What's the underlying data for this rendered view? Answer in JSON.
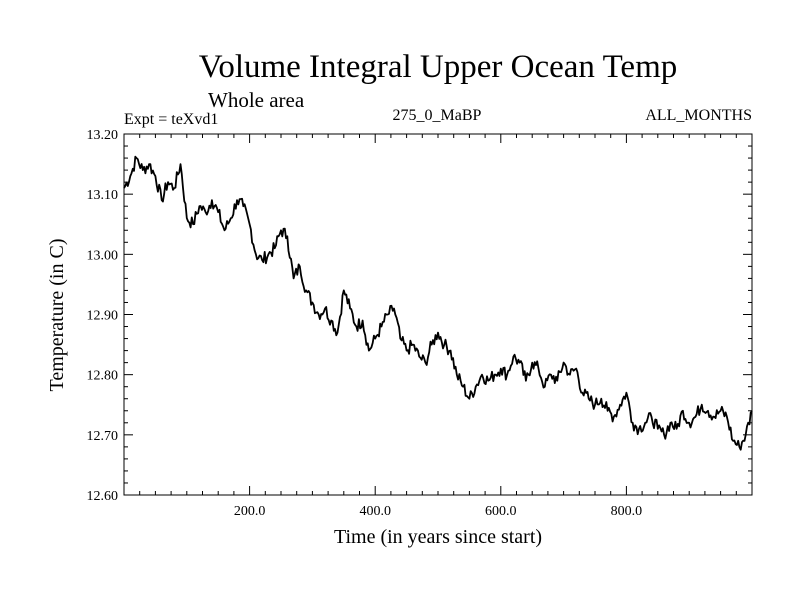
{
  "chart_data": {
    "type": "line",
    "title": "Volume Integral Upper Ocean Temp",
    "subtitle": "Whole area",
    "expt_label": "Expt = teXvd1",
    "run_label": "275_0_MaBP",
    "months_label": "ALL_MONTHS",
    "xlabel": "Time (in years since start)",
    "ylabel": "Temperature (in C)",
    "xlim": [
      0,
      1000
    ],
    "ylim": [
      12.6,
      13.2
    ],
    "x_ticks": [
      200,
      400,
      600,
      800
    ],
    "x_tick_labels": [
      "200.0",
      "400.0",
      "600.0",
      "800.0"
    ],
    "y_ticks": [
      12.6,
      12.7,
      12.8,
      12.9,
      13.0,
      13.1,
      13.2
    ],
    "y_tick_labels": [
      "12.60",
      "12.70",
      "12.80",
      "12.90",
      "13.00",
      "13.10",
      "13.20"
    ],
    "grid": false,
    "series": [
      {
        "name": "teXvd1",
        "color": "#000000",
        "x": [
          0,
          10,
          20,
          30,
          40,
          50,
          60,
          70,
          80,
          90,
          100,
          110,
          120,
          130,
          140,
          150,
          160,
          170,
          180,
          190,
          200,
          210,
          220,
          230,
          240,
          250,
          260,
          270,
          280,
          290,
          300,
          310,
          320,
          330,
          340,
          350,
          360,
          370,
          380,
          390,
          400,
          410,
          420,
          430,
          440,
          450,
          460,
          470,
          480,
          490,
          500,
          510,
          520,
          530,
          540,
          550,
          560,
          570,
          580,
          590,
          600,
          610,
          620,
          630,
          640,
          650,
          660,
          670,
          680,
          690,
          700,
          710,
          720,
          730,
          740,
          750,
          760,
          770,
          780,
          790,
          800,
          810,
          820,
          830,
          840,
          850,
          860,
          870,
          880,
          890,
          900,
          910,
          920,
          930,
          940,
          950,
          960,
          970,
          980,
          990,
          1000
        ],
        "values": [
          13.11,
          13.13,
          13.16,
          13.14,
          13.15,
          13.13,
          13.09,
          13.12,
          13.11,
          13.15,
          13.06,
          13.05,
          13.08,
          13.07,
          13.09,
          13.07,
          13.04,
          13.06,
          13.09,
          13.08,
          13.05,
          13.0,
          12.99,
          13.0,
          13.01,
          13.04,
          13.03,
          12.96,
          12.98,
          12.94,
          12.92,
          12.9,
          12.91,
          12.89,
          12.87,
          12.94,
          12.91,
          12.88,
          12.89,
          12.84,
          12.86,
          12.88,
          12.9,
          12.91,
          12.86,
          12.84,
          12.85,
          12.83,
          12.82,
          12.85,
          12.87,
          12.85,
          12.84,
          12.8,
          12.78,
          12.76,
          12.78,
          12.8,
          12.79,
          12.8,
          12.81,
          12.8,
          12.83,
          12.82,
          12.79,
          12.82,
          12.81,
          12.78,
          12.8,
          12.79,
          12.82,
          12.8,
          12.81,
          12.77,
          12.76,
          12.75,
          12.76,
          12.74,
          12.73,
          12.75,
          12.77,
          12.72,
          12.71,
          12.72,
          12.73,
          12.71,
          12.7,
          12.72,
          12.71,
          12.74,
          12.72,
          12.73,
          12.75,
          12.74,
          12.73,
          12.74,
          12.73,
          12.69,
          12.68,
          12.7,
          12.74
        ]
      }
    ]
  }
}
